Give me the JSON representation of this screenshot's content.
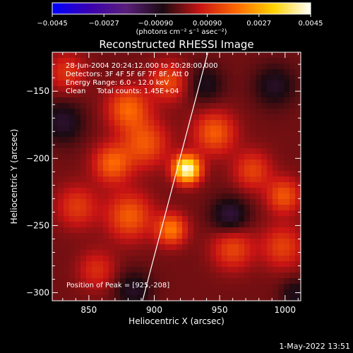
{
  "chart_data": {
    "type": "heatmap",
    "title": "Reconstructed RHESSI Image",
    "xlabel": "Heliocentric X (arcsec)",
    "ylabel": "Heliocentric Y (arcsec)",
    "xlim": [
      822,
      1012
    ],
    "ylim": [
      -306,
      -121
    ],
    "x_ticks": [
      850,
      900,
      950,
      1000
    ],
    "x_tick_labels": [
      "850",
      "900",
      "950",
      "1000"
    ],
    "y_ticks": [
      -150,
      -200,
      -250,
      -300
    ],
    "y_tick_labels": [
      "−150",
      "−200",
      "−250",
      "−300"
    ],
    "colorbar": {
      "min": -0.0045,
      "max": 0.0045,
      "tick_values": [
        -0.0045,
        -0.0027,
        -0.0009,
        0.0009,
        0.0027,
        0.0045
      ],
      "tick_labels": [
        "−0.0045",
        "−0.0027",
        "−0.00090",
        "0.00090",
        "0.0027",
        "0.0045"
      ],
      "units_label": "(photons cm⁻² s⁻¹ asec⁻²)",
      "colors": [
        "#0000ff",
        "#3a00b0",
        "#5a1f7a",
        "#1a0a10",
        "#c81414",
        "#ff6a00",
        "#ffd200",
        "#ffffff"
      ]
    },
    "info_lines": [
      "28-Jun-2004 20:24:12.000 to 20:28:00.000",
      "Detectors: 3F 4F 5F 6F 7F 8F, Att 0",
      "Energy Range: 6.0 - 12.0 keV",
      "Clean     Total counts: 1.45E+04"
    ],
    "peak_text": "Position of Peak = [925,-208]",
    "peak": {
      "x": 925,
      "y": -208
    },
    "limb_line": [
      [
        891,
        -306
      ],
      [
        941,
        -121
      ]
    ],
    "sources": [
      {
        "x": 925,
        "y": -208,
        "sigma": 7,
        "amp": 0.0045
      },
      {
        "x": 833,
        "y": -136,
        "sigma": 10,
        "amp": 0.0011
      },
      {
        "x": 880,
        "y": -163,
        "sigma": 11,
        "amp": 0.0018
      },
      {
        "x": 911,
        "y": -143,
        "sigma": 10,
        "amp": 0.0014
      },
      {
        "x": 893,
        "y": -189,
        "sigma": 12,
        "amp": 0.0016
      },
      {
        "x": 868,
        "y": -204,
        "sigma": 10,
        "amp": 0.0018
      },
      {
        "x": 946,
        "y": -181,
        "sigma": 11,
        "amp": 0.0017
      },
      {
        "x": 975,
        "y": -209,
        "sigma": 10,
        "amp": 0.0013
      },
      {
        "x": 999,
        "y": -228,
        "sigma": 9,
        "amp": 0.0016
      },
      {
        "x": 881,
        "y": -243,
        "sigma": 12,
        "amp": 0.0017
      },
      {
        "x": 913,
        "y": -253,
        "sigma": 8,
        "amp": 0.0021
      },
      {
        "x": 841,
        "y": -236,
        "sigma": 11,
        "amp": 0.0012
      },
      {
        "x": 960,
        "y": -267,
        "sigma": 11,
        "amp": 0.0014
      },
      {
        "x": 998,
        "y": -266,
        "sigma": 11,
        "amp": 0.0013
      },
      {
        "x": 856,
        "y": -283,
        "sigma": 10,
        "amp": 0.001
      },
      {
        "x": 958,
        "y": -243,
        "sigma": 10,
        "amp": -0.0012
      },
      {
        "x": 830,
        "y": -173,
        "sigma": 11,
        "amp": -0.001
      },
      {
        "x": 992,
        "y": -146,
        "sigma": 11,
        "amp": -0.0009
      },
      {
        "x": 939,
        "y": -145,
        "sigma": 10,
        "amp": -0.0008
      },
      {
        "x": 884,
        "y": -298,
        "sigma": 10,
        "amp": -0.0009
      },
      {
        "x": 1008,
        "y": -301,
        "sigma": 8,
        "amp": -0.0008
      }
    ]
  },
  "footer": {
    "timestamp": "1-May-2022 13:51"
  }
}
